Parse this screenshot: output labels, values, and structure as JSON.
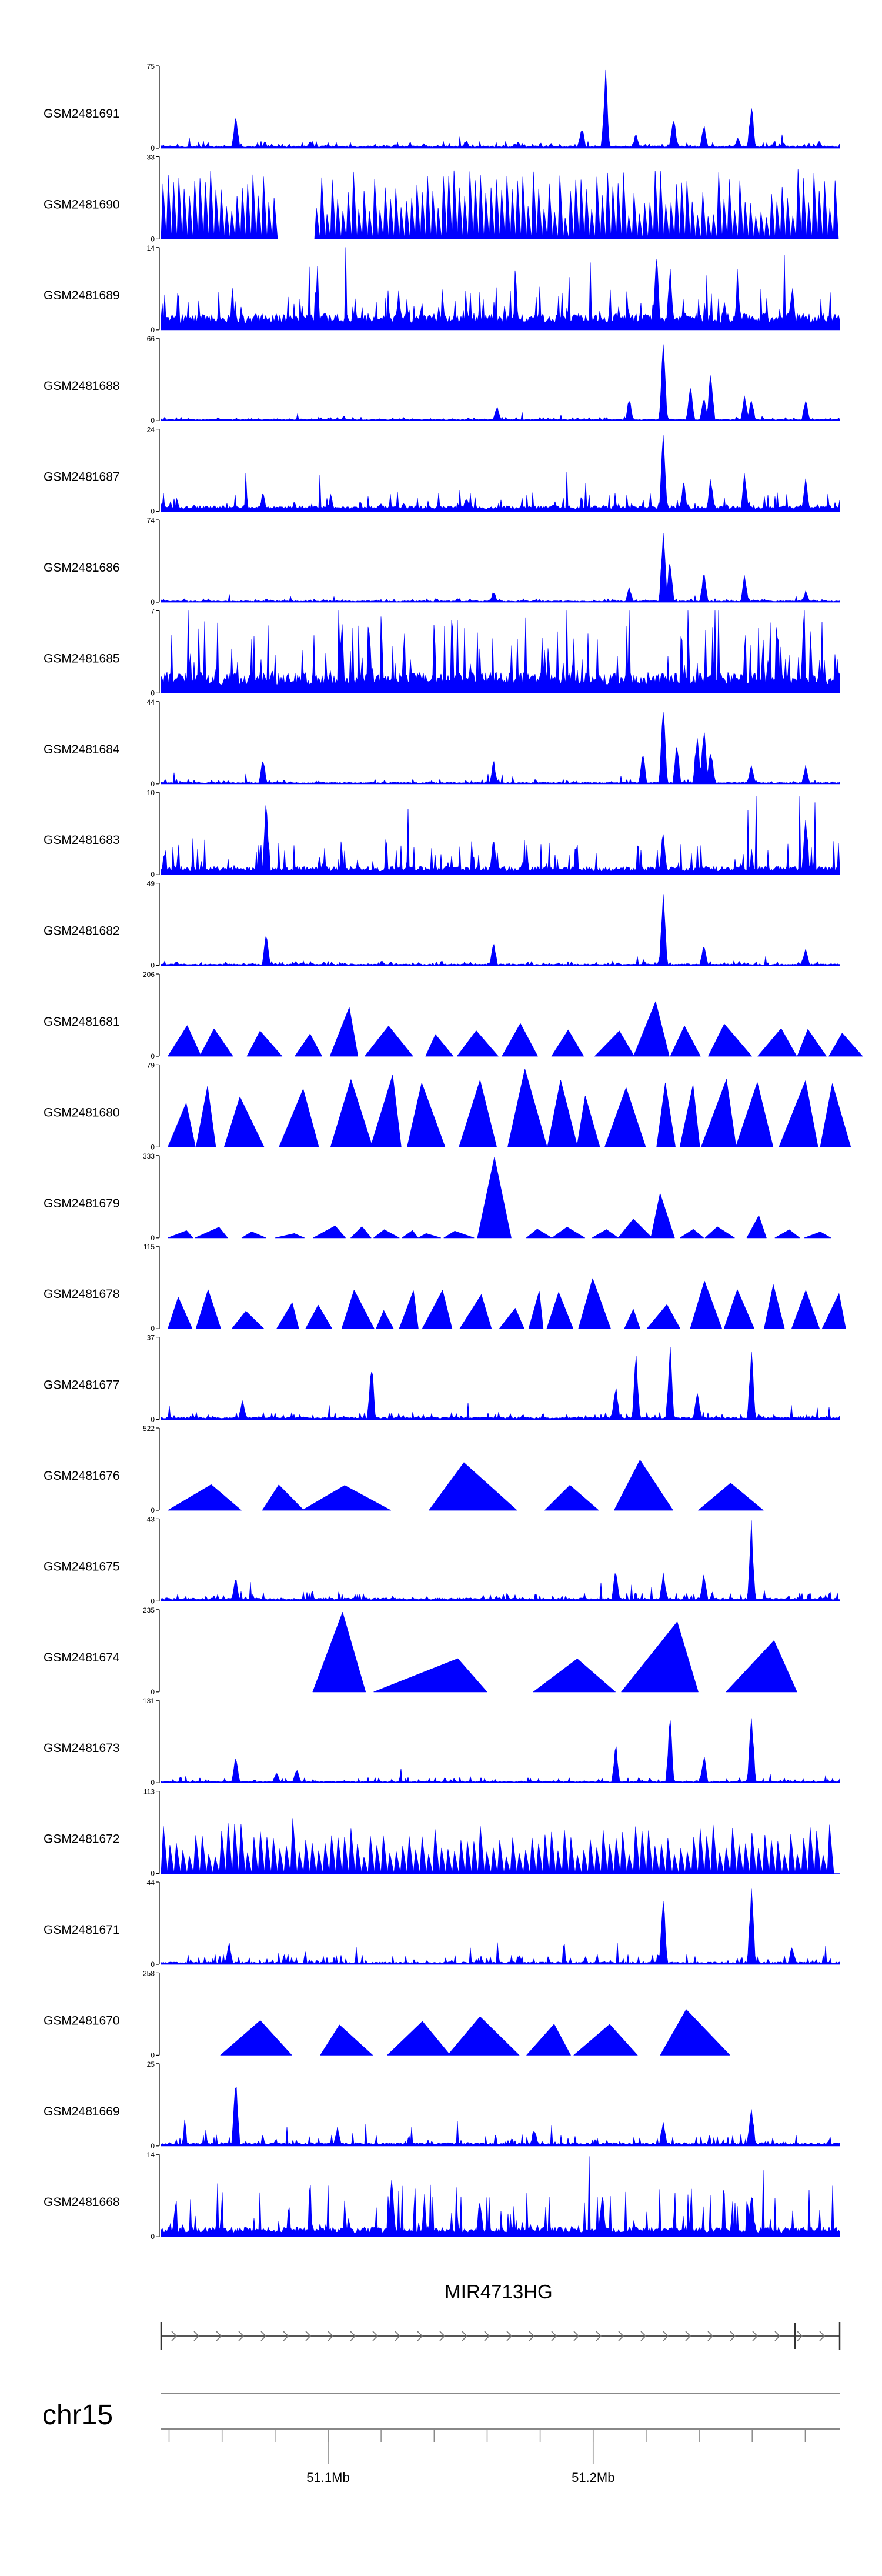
{
  "chart_data": {
    "type": "area",
    "title": "",
    "chromosome": "chr15",
    "gene": {
      "name": "MIR4713HG",
      "strand": "+"
    },
    "xlim_mb": [
      51.037,
      51.293
    ],
    "x_ticks": [
      {
        "value": 51.1,
        "label": "51.1Mb"
      },
      {
        "value": 51.2,
        "label": "51.2Mb"
      }
    ],
    "color": "#0000ff",
    "tracks": [
      {
        "name": "GSM2481691",
        "ymax": 75,
        "ymax_label": "75",
        "style": "dense",
        "baseline": 0.03,
        "noise": 0.06,
        "step": 2,
        "peaks": [
          [
            0.11,
            0.45
          ],
          [
            0.22,
            0.1
          ],
          [
            0.45,
            0.1
          ],
          [
            0.62,
            0.3
          ],
          [
            0.655,
            1.0
          ],
          [
            0.7,
            0.2
          ],
          [
            0.755,
            0.45
          ],
          [
            0.8,
            0.3
          ],
          [
            0.85,
            0.15
          ],
          [
            0.87,
            0.6
          ],
          [
            0.97,
            0.1
          ]
        ]
      },
      {
        "name": "GSM2481690",
        "ymax": 33,
        "ymax_label": "33",
        "style": "spiky",
        "step": 9,
        "min": 0.25,
        "max": 0.85,
        "gaps": [
          [
            0.17,
            0.22
          ]
        ],
        "peaks": [
          [
            0.01,
            0.95
          ],
          [
            0.62,
            0.9
          ],
          [
            0.77,
            0.85
          ],
          [
            0.96,
            0.85
          ]
        ]
      },
      {
        "name": "GSM2481689",
        "ymax": 14,
        "ymax_label": "14",
        "style": "dense",
        "baseline": 0.2,
        "noise": 0.35,
        "step": 2,
        "peaks": [
          [
            0.35,
            0.5
          ],
          [
            0.73,
            1.0
          ],
          [
            0.75,
            0.85
          ],
          [
            0.85,
            0.6
          ],
          [
            0.83,
            0.4
          ],
          [
            0.93,
            0.6
          ]
        ]
      },
      {
        "name": "GSM2481688",
        "ymax": 66,
        "ymax_label": "66",
        "style": "dense",
        "baseline": 0.02,
        "noise": 0.03,
        "step": 2,
        "peaks": [
          [
            0.495,
            0.2
          ],
          [
            0.69,
            0.3
          ],
          [
            0.74,
            1.0
          ],
          [
            0.78,
            0.5
          ],
          [
            0.8,
            0.35
          ],
          [
            0.81,
            0.65
          ],
          [
            0.86,
            0.35
          ],
          [
            0.87,
            0.3
          ],
          [
            0.95,
            0.3
          ]
        ]
      },
      {
        "name": "GSM2481687",
        "ymax": 24,
        "ymax_label": "24",
        "style": "dense",
        "baseline": 0.07,
        "noise": 0.18,
        "step": 2,
        "peaks": [
          [
            0.15,
            0.25
          ],
          [
            0.25,
            0.2
          ],
          [
            0.45,
            0.2
          ],
          [
            0.74,
            1.0
          ],
          [
            0.77,
            0.4
          ],
          [
            0.81,
            0.45
          ],
          [
            0.86,
            0.5
          ],
          [
            0.95,
            0.45
          ]
        ]
      },
      {
        "name": "GSM2481686",
        "ymax": 74,
        "ymax_label": "74",
        "style": "dense",
        "baseline": 0.02,
        "noise": 0.03,
        "step": 2,
        "peaks": [
          [
            0.49,
            0.15
          ],
          [
            0.69,
            0.2
          ],
          [
            0.74,
            1.0
          ],
          [
            0.75,
            0.6
          ],
          [
            0.8,
            0.4
          ],
          [
            0.86,
            0.35
          ],
          [
            0.95,
            0.15
          ]
        ]
      },
      {
        "name": "GSM2481685",
        "ymax": 7,
        "ymax_label": "7",
        "style": "dense",
        "baseline": 0.25,
        "noise": 0.75,
        "step": 2,
        "peaks": []
      },
      {
        "name": "GSM2481684",
        "ymax": 44,
        "ymax_label": "44",
        "style": "dense",
        "baseline": 0.02,
        "noise": 0.04,
        "step": 2,
        "peaks": [
          [
            0.15,
            0.35
          ],
          [
            0.49,
            0.3
          ],
          [
            0.71,
            0.45
          ],
          [
            0.74,
            1.0
          ],
          [
            0.76,
            0.55
          ],
          [
            0.79,
            0.7
          ],
          [
            0.8,
            0.85
          ],
          [
            0.81,
            0.5
          ],
          [
            0.87,
            0.25
          ],
          [
            0.95,
            0.25
          ]
        ]
      },
      {
        "name": "GSM2481683",
        "ymax": 10,
        "ymax_label": "10",
        "style": "dense",
        "baseline": 0.1,
        "noise": 0.35,
        "step": 2,
        "peaks": [
          [
            0.155,
            1.0
          ],
          [
            0.49,
            0.5
          ],
          [
            0.74,
            0.6
          ],
          [
            0.95,
            0.75
          ]
        ]
      },
      {
        "name": "GSM2481682",
        "ymax": 49,
        "ymax_label": "49",
        "style": "dense",
        "baseline": 0.02,
        "noise": 0.04,
        "step": 2,
        "peaks": [
          [
            0.155,
            0.45
          ],
          [
            0.49,
            0.3
          ],
          [
            0.74,
            1.0
          ],
          [
            0.8,
            0.3
          ],
          [
            0.95,
            0.25
          ]
        ]
      },
      {
        "name": "GSM2481681",
        "ymax": 206,
        "ymax_label": "206",
        "style": "tri",
        "min": 0.25,
        "max": 0.4,
        "spacing": 18,
        "gaps": [],
        "peaks": [
          [
            0.27,
            0.6
          ],
          [
            0.5,
            0.6
          ],
          [
            0.73,
            0.75
          ],
          [
            0.74,
            1.0
          ],
          [
            0.75,
            0.6
          ],
          [
            0.82,
            0.3
          ]
        ]
      },
      {
        "name": "GSM2481680",
        "ymax": 79,
        "ymax_label": "79",
        "style": "tri",
        "min": 0.5,
        "max": 0.85,
        "spacing": 14,
        "gaps": [],
        "peaks": [
          [
            0.0,
            0.9
          ],
          [
            0.27,
            1.0
          ],
          [
            0.33,
            0.9
          ],
          [
            0.5,
            1.0
          ],
          [
            0.54,
            0.95
          ],
          [
            0.82,
            0.85
          ],
          [
            0.95,
            0.65
          ]
        ]
      },
      {
        "name": "GSM2481679",
        "ymax": 333,
        "ymax_label": "333",
        "style": "tri",
        "min": 0.05,
        "max": 0.15,
        "spacing": 12,
        "gaps": [],
        "peaks": [
          [
            0.49,
            1.0
          ],
          [
            0.74,
            0.55
          ],
          [
            0.72,
            0.4
          ],
          [
            0.87,
            0.35
          ]
        ]
      },
      {
        "name": "GSM2481678",
        "ymax": 115,
        "ymax_label": "115",
        "style": "tri",
        "min": 0.15,
        "max": 0.5,
        "spacing": 11,
        "gaps": [],
        "peaks": [
          [
            0.25,
            0.5
          ],
          [
            0.4,
            0.55
          ],
          [
            0.55,
            0.5
          ],
          [
            0.62,
            1.0
          ],
          [
            0.82,
            0.9
          ],
          [
            0.9,
            0.6
          ]
        ]
      },
      {
        "name": "GSM2481677",
        "ymax": 37,
        "ymax_label": "37",
        "style": "dense",
        "baseline": 0.03,
        "noise": 0.07,
        "step": 2,
        "peaks": [
          [
            0.12,
            0.3
          ],
          [
            0.31,
            0.8
          ],
          [
            0.67,
            0.5
          ],
          [
            0.7,
            0.85
          ],
          [
            0.75,
            0.95
          ],
          [
            0.79,
            0.4
          ],
          [
            0.87,
            0.95
          ]
        ]
      },
      {
        "name": "GSM2481676",
        "ymax": 522,
        "ymax_label": "522",
        "style": "tri",
        "min": 0.3,
        "max": 0.35,
        "spacing": 30,
        "gaps": [
          [
            0.05,
            0.09
          ],
          [
            0.92,
            1.0
          ]
        ],
        "peaks": [
          [
            0.42,
            0.65
          ],
          [
            0.44,
            0.7
          ],
          [
            0.68,
            1.0
          ],
          [
            0.73,
            0.65
          ],
          [
            0.75,
            0.55
          ]
        ]
      },
      {
        "name": "GSM2481675",
        "ymax": 43,
        "ymax_label": "43",
        "style": "dense",
        "baseline": 0.04,
        "noise": 0.08,
        "step": 2,
        "peaks": [
          [
            0.11,
            0.3
          ],
          [
            0.67,
            0.45
          ],
          [
            0.74,
            0.35
          ],
          [
            0.8,
            0.4
          ],
          [
            0.87,
            1.0
          ]
        ]
      },
      {
        "name": "GSM2481674",
        "ymax": 235,
        "ymax_label": "235",
        "style": "tri",
        "min": 0.4,
        "max": 0.5,
        "spacing": 40,
        "gaps": [
          [
            0.0,
            0.13
          ],
          [
            0.95,
            1.0
          ]
        ],
        "peaks": [
          [
            0.26,
            1.0
          ],
          [
            0.28,
            0.5
          ],
          [
            0.72,
            1.0
          ],
          [
            0.92,
            1.0
          ]
        ]
      },
      {
        "name": "GSM2481673",
        "ymax": 131,
        "ymax_label": "131",
        "style": "dense",
        "baseline": 0.02,
        "noise": 0.05,
        "step": 2,
        "peaks": [
          [
            0.11,
            0.35
          ],
          [
            0.17,
            0.15
          ],
          [
            0.2,
            0.2
          ],
          [
            0.67,
            0.5
          ],
          [
            0.75,
            0.85
          ],
          [
            0.8,
            0.4
          ],
          [
            0.87,
            1.0
          ]
        ]
      },
      {
        "name": "GSM2481672",
        "ymax": 113,
        "ymax_label": "113",
        "style": "spiky",
        "step": 11,
        "min": 0.2,
        "max": 0.6,
        "gaps": [],
        "peaks": [
          [
            0.1,
            1.0
          ],
          [
            0.19,
            0.7
          ],
          [
            0.31,
            0.55
          ],
          [
            0.57,
            0.6
          ],
          [
            0.74,
            0.6
          ],
          [
            0.99,
            0.45
          ]
        ]
      },
      {
        "name": "GSM2481671",
        "ymax": 44,
        "ymax_label": "44",
        "style": "dense",
        "baseline": 0.03,
        "noise": 0.1,
        "step": 2,
        "peaks": [
          [
            0.1,
            0.3
          ],
          [
            0.74,
            0.9
          ],
          [
            0.87,
            1.0
          ],
          [
            0.93,
            0.25
          ]
        ]
      },
      {
        "name": "GSM2481670",
        "ymax": 258,
        "ymax_label": "258",
        "style": "tri",
        "min": 0.35,
        "max": 0.5,
        "spacing": 26,
        "gaps": [
          [
            0.0,
            0.02
          ],
          [
            0.94,
            1.0
          ]
        ],
        "peaks": [
          [
            0.33,
            1.0
          ],
          [
            0.41,
            0.45
          ],
          [
            0.72,
            1.0
          ],
          [
            0.78,
            0.6
          ]
        ]
      },
      {
        "name": "GSM2481669",
        "ymax": 25,
        "ymax_label": "25",
        "style": "dense",
        "baseline": 0.04,
        "noise": 0.1,
        "step": 2,
        "peaks": [
          [
            0.11,
            1.0
          ],
          [
            0.26,
            0.25
          ],
          [
            0.55,
            0.25
          ],
          [
            0.74,
            0.35
          ],
          [
            0.87,
            0.55
          ]
        ]
      },
      {
        "name": "GSM2481668",
        "ymax": 14,
        "ymax_label": "14",
        "style": "dense",
        "baseline": 0.12,
        "noise": 0.55,
        "step": 2,
        "peaks": [
          [
            0.34,
            0.85
          ],
          [
            0.47,
            0.55
          ],
          [
            0.65,
            0.65
          ],
          [
            0.87,
            0.6
          ]
        ]
      }
    ]
  }
}
